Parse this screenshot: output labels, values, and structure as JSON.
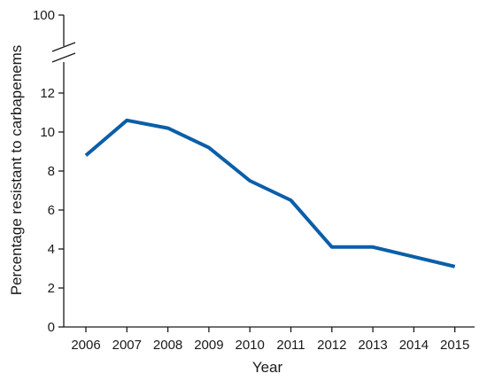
{
  "chart_data": {
    "type": "line",
    "title": "",
    "xlabel": "Year",
    "ylabel": "Percentage resistant to carbapenems",
    "x": [
      2006,
      2007,
      2008,
      2009,
      2010,
      2011,
      2012,
      2013,
      2014,
      2015
    ],
    "x_tick_labels": [
      "2006",
      "2007",
      "2008",
      "2009",
      "2010",
      "2011",
      "2012",
      "2013",
      "2014",
      "2015"
    ],
    "series": [
      {
        "values": [
          8.8,
          10.6,
          10.2,
          9.2,
          7.5,
          6.5,
          4.1,
          4.1,
          3.6,
          3.1
        ],
        "color": "#0b5ea8"
      }
    ],
    "ylim": [
      0,
      12
    ],
    "y_ticks": [
      0,
      2,
      4,
      6,
      8,
      10,
      12
    ],
    "y_tick_labels": [
      "0",
      "2",
      "4",
      "6",
      "8",
      "10",
      "12"
    ],
    "y_axis_break": true,
    "y_axis_top_label": "100",
    "grid": false,
    "legend": "none"
  }
}
